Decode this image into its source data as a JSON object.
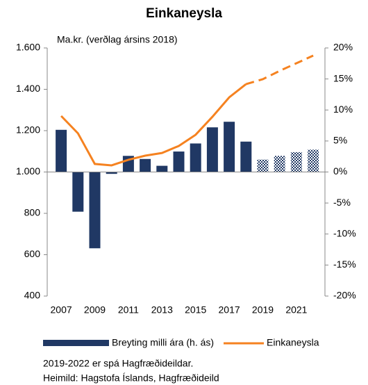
{
  "chart_data": {
    "type": "bar_line",
    "title": "Einkaneysla",
    "annotation": "Ma.kr. (verðlag ársins 2018)",
    "categories": [
      "2007",
      null,
      "2009",
      null,
      "2011",
      null,
      "2013",
      null,
      "2015",
      null,
      "2017",
      null,
      "2019",
      null,
      "2021",
      null
    ],
    "series": [
      {
        "name": "Breyting milli ára (h. ás)",
        "type": "bar",
        "axis": "y2",
        "color": "#203864",
        "values": [
          6.8,
          -6.4,
          -12.3,
          -0.3,
          2.6,
          2.1,
          1.0,
          3.3,
          4.6,
          7.2,
          8.1,
          4.9,
          2.0,
          2.6,
          3.2,
          3.6
        ]
      },
      {
        "name": "Einkaneysla",
        "type": "line",
        "axis": "y",
        "color": "#f58220",
        "values": [
          1271,
          1187,
          1039,
          1032,
          1059,
          1079,
          1092,
          1126,
          1180,
          1267,
          1361,
          1425,
          1449,
          1489,
          1526,
          1563
        ]
      }
    ],
    "forecast_from": "2019",
    "ylim": [
      400,
      1600
    ],
    "yticks": [
      {
        "value": 400,
        "label": "400"
      },
      {
        "value": 600,
        "label": "600"
      },
      {
        "value": 800,
        "label": "800"
      },
      {
        "value": 1000,
        "label": "1.000"
      },
      {
        "value": 1200,
        "label": "1.200"
      },
      {
        "value": 1400,
        "label": "1.400"
      },
      {
        "value": 1600,
        "label": "1.600"
      }
    ],
    "y2lim": [
      -20,
      20
    ],
    "y2ticks": [
      {
        "value": -20,
        "label": "-20%"
      },
      {
        "value": -15,
        "label": "-15%"
      },
      {
        "value": -10,
        "label": "-10%"
      },
      {
        "value": -5,
        "label": "-5%"
      },
      {
        "value": 0,
        "label": "0%"
      },
      {
        "value": 5,
        "label": "5%"
      },
      {
        "value": 10,
        "label": "10%"
      },
      {
        "value": 15,
        "label": "15%"
      },
      {
        "value": 20,
        "label": "20%"
      }
    ],
    "notes": [
      "2019-2022 er spá Hagfræðideildar.",
      "Heimild: Hagstofa Íslands, Hagfræðideild"
    ]
  }
}
